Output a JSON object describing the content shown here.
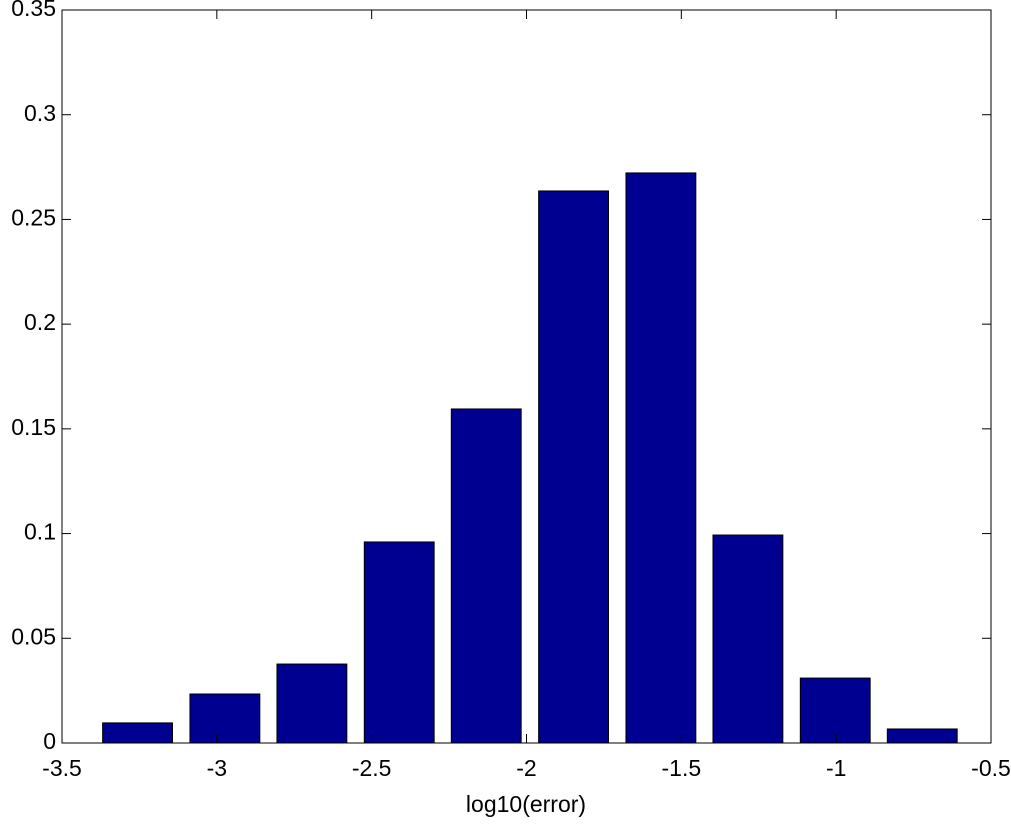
{
  "chart_data": {
    "type": "bar",
    "xlabel": "log10(error)",
    "x": [
      -3.256,
      -2.974,
      -2.693,
      -2.411,
      -2.13,
      -1.848,
      -1.566,
      -1.285,
      -1.003,
      -0.722
    ],
    "values": [
      0.0096,
      0.0234,
      0.0377,
      0.096,
      0.1595,
      0.2636,
      0.2722,
      0.0993,
      0.031,
      0.0067
    ],
    "color": "#000090",
    "bar_width": 0.8,
    "xlim": [
      -3.5,
      -0.5
    ],
    "xticks": [
      -3.5,
      -3,
      -2.5,
      -2,
      -1.5,
      -1,
      -0.5
    ],
    "ylim": [
      0,
      0.35
    ],
    "yticks": [
      0,
      0.05,
      0.1,
      0.15,
      0.2,
      0.25,
      0.3,
      0.35
    ],
    "grid": false
  }
}
